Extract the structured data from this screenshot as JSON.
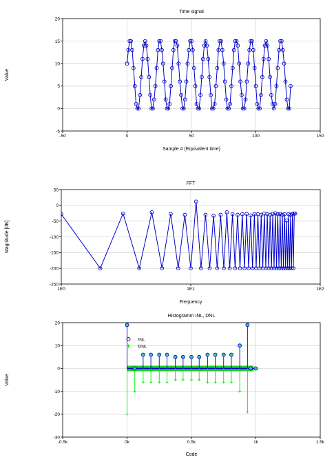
{
  "chart_data": [
    {
      "type": "scatter",
      "title": "Time signal",
      "xlabel": "Sample # (Equivalent time)",
      "ylabel": "Value",
      "xlim": [
        -50,
        150
      ],
      "ylim": [
        -5,
        20
      ],
      "xticks": [
        "-50",
        "0",
        "50",
        "100",
        "150"
      ],
      "yticks": [
        "-5",
        "0",
        "5",
        "10",
        "15",
        "20"
      ],
      "grid": true,
      "series": [
        {
          "name": "",
          "color": "#0000cc",
          "x": [
            0,
            1,
            2,
            3,
            4,
            5,
            6,
            7,
            8,
            9,
            10,
            11,
            12,
            13,
            14,
            15,
            16,
            17,
            18,
            19,
            20,
            21,
            22,
            23,
            24,
            25,
            26,
            27,
            28,
            29,
            30,
            31,
            32,
            33,
            34,
            35,
            36,
            37,
            38,
            39,
            40,
            41,
            42,
            43,
            44,
            45,
            46,
            47,
            48,
            49,
            50,
            51,
            52,
            53,
            54,
            55,
            56,
            57,
            58,
            59,
            60,
            61,
            62,
            63,
            64,
            65,
            66,
            67,
            68,
            69,
            70,
            71,
            72,
            73,
            74,
            75,
            76,
            77,
            78,
            79,
            80,
            81,
            82,
            83,
            84,
            85,
            86,
            87,
            88,
            89,
            90,
            91,
            92,
            93,
            94,
            95,
            96,
            97,
            98,
            99,
            100,
            101,
            102,
            103,
            104,
            105,
            106,
            107,
            108,
            109,
            110,
            111,
            112,
            113,
            114,
            115,
            116,
            117,
            118,
            119,
            120,
            121,
            122,
            123,
            124,
            125,
            126,
            127
          ],
          "y": [
            10,
            13,
            15,
            15,
            13,
            9,
            5,
            1,
            0,
            0,
            3,
            7,
            11,
            14,
            15,
            14,
            11,
            7,
            3,
            0,
            0,
            2,
            5,
            9,
            13,
            15,
            15,
            13,
            10,
            6,
            2,
            0,
            0,
            1,
            5,
            9,
            13,
            15,
            15,
            14,
            10,
            6,
            3,
            0,
            0,
            2,
            6,
            10,
            13,
            15,
            15,
            13,
            9,
            5,
            1,
            0,
            0,
            3,
            7,
            11,
            14,
            15,
            14,
            11,
            7,
            3,
            0,
            0,
            1,
            5,
            9,
            13,
            15,
            15,
            13,
            10,
            6,
            2,
            0,
            0,
            1,
            5,
            9,
            13,
            15,
            15,
            14,
            10,
            6,
            3,
            0,
            0,
            2,
            6,
            10,
            13,
            15,
            15,
            13,
            9,
            5,
            1,
            0,
            0,
            3,
            7,
            11,
            14,
            15,
            14,
            11,
            7,
            3,
            1,
            0,
            1,
            5,
            9,
            13,
            15,
            15,
            13,
            10,
            6,
            2,
            0,
            0,
            5
          ]
        }
      ]
    },
    {
      "type": "line",
      "title": "FFT",
      "xlabel": "Frequency",
      "ylabel": "Magnitude [dB]",
      "xscale": "log",
      "xlim": [
        1,
        100
      ],
      "ylim": [
        -250,
        50
      ],
      "xticks": [
        "1E0",
        "1E1",
        "1E2"
      ],
      "yticks": [
        "-250",
        "-200",
        "-150",
        "-100",
        "-50",
        "0",
        "50"
      ],
      "grid": true,
      "series": [
        {
          "name": "",
          "color": "#0000cc",
          "x": [
            1,
            2,
            3,
            4,
            5,
            6,
            7,
            8,
            9,
            10,
            11,
            12,
            13,
            14,
            15,
            16,
            17,
            18,
            19,
            20,
            21,
            22,
            23,
            24,
            25,
            26,
            27,
            28,
            29,
            30,
            31,
            32,
            33,
            34,
            35,
            36,
            37,
            38,
            39,
            40,
            41,
            42,
            43,
            44,
            45,
            46,
            47,
            48,
            49,
            50,
            51,
            52,
            53,
            54,
            55,
            56,
            57,
            58,
            59,
            60,
            61,
            62,
            63,
            64
          ],
          "y": [
            -28,
            -200,
            -26,
            -200,
            -22,
            -200,
            -27,
            -200,
            -30,
            -200,
            12,
            -200,
            -30,
            -200,
            -33,
            -200,
            -30,
            -200,
            -22,
            -200,
            -28,
            -200,
            -30,
            -200,
            -28,
            -200,
            -27,
            -200,
            -32,
            -200,
            -28,
            -200,
            -28,
            -200,
            -30,
            -200,
            -26,
            -200,
            -28,
            -200,
            -30,
            -200,
            -27,
            -200,
            -25,
            -200,
            -28,
            -200,
            -27,
            -200,
            -30,
            -200,
            -28,
            -200,
            -48,
            -200,
            -28,
            -200,
            -30,
            -200,
            -27,
            -200,
            -26,
            -26
          ]
        }
      ]
    },
    {
      "type": "scatter",
      "title": "Histogramm INL, DNL",
      "xlabel": "Code",
      "ylabel": "Value",
      "xlim": [
        -500,
        1500
      ],
      "ylim": [
        -30,
        20
      ],
      "xticks": [
        "-0.5k",
        "0k",
        "0.5k",
        "1k",
        "1.5k"
      ],
      "yticks": [
        "-30",
        "-20",
        "-10",
        "0",
        "10",
        "20"
      ],
      "grid": true,
      "legend": "top-left",
      "series": [
        {
          "name": "INL",
          "color": "#0000cc",
          "fill": "#33ccaa",
          "x": [
            0,
            60,
            125,
            185,
            250,
            310,
            375,
            435,
            500,
            560,
            625,
            685,
            750,
            810,
            875,
            935,
            960,
            1000
          ],
          "y": [
            19,
            0,
            6,
            6,
            6,
            6,
            5,
            5,
            5,
            5,
            6,
            6,
            6,
            6,
            10,
            19,
            0,
            0
          ]
        },
        {
          "name": "DNL",
          "color": "#00ee00",
          "x": [
            0,
            60,
            125,
            185,
            250,
            310,
            375,
            435,
            500,
            560,
            625,
            685,
            750,
            810,
            875,
            935,
            960
          ],
          "y": [
            -20,
            -10,
            -6,
            -6,
            -6,
            -6,
            -5,
            -5,
            -5,
            -5,
            -6,
            -6,
            -6,
            -6,
            -10,
            -19,
            0
          ]
        }
      ]
    }
  ]
}
